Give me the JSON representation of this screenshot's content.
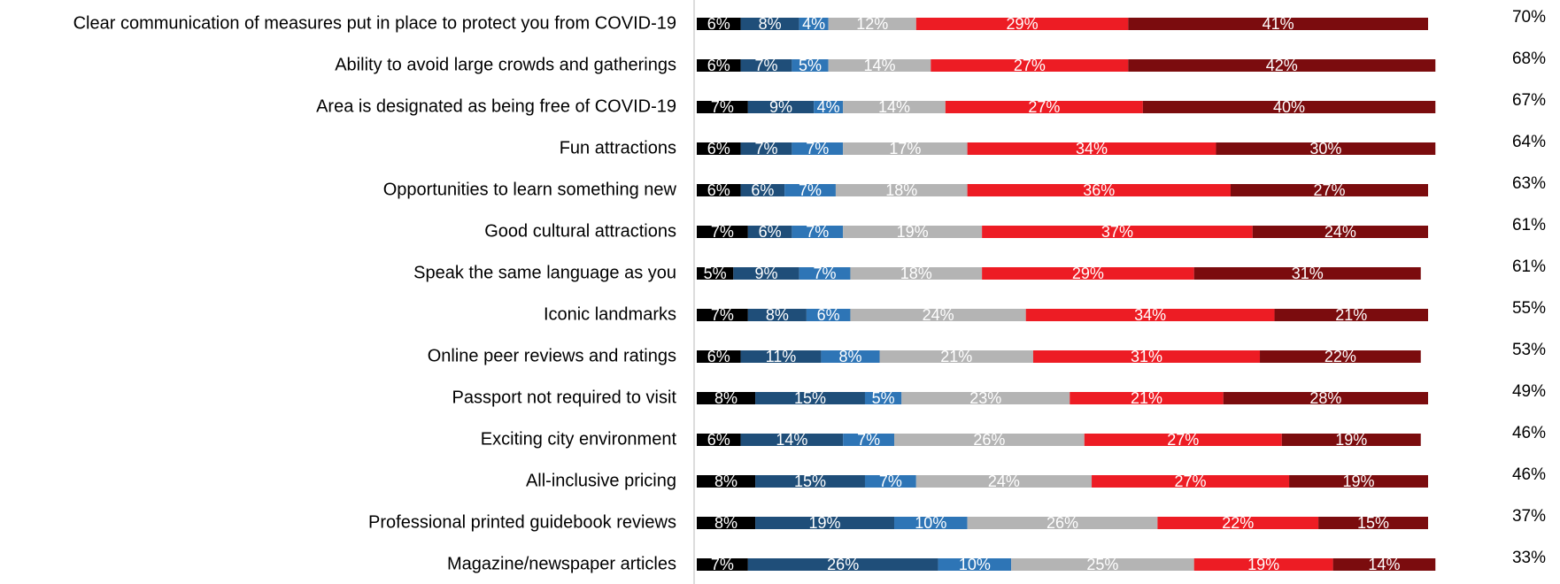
{
  "chart_data": {
    "type": "stacked_barh",
    "categories": [
      "Clear communication of measures put in place to protect you from COVID-19",
      "Ability to avoid large crowds and gatherings",
      "Area is designated as being free of COVID-19",
      "Fun attractions",
      "Opportunities to learn something new",
      "Good cultural attractions",
      "Speak the same language as you",
      "Iconic landmarks",
      "Online peer reviews and ratings",
      "Passport not required to visit",
      "Exciting city environment",
      "All-inclusive pricing",
      "Professional printed guidebook reviews",
      "Magazine/newspaper articles"
    ],
    "xlim": [
      0,
      100
    ],
    "series": [
      {
        "color": "#000000",
        "values": [
          6,
          6,
          7,
          6,
          6,
          7,
          5,
          7,
          6,
          8,
          6,
          8,
          8,
          7
        ],
        "value_labels": [
          "6%",
          "6%",
          "7%",
          "6%",
          "6%",
          "7%",
          "5%",
          "7%",
          "6%",
          "8%",
          "6%",
          "8%",
          "8%",
          "7%"
        ]
      },
      {
        "color": "#1f4e79",
        "values": [
          8,
          7,
          9,
          7,
          6,
          6,
          9,
          8,
          11,
          15,
          14,
          15,
          19,
          26
        ],
        "value_labels": [
          "8%",
          "7%",
          "9%",
          "7%",
          "6%",
          "6%",
          "9%",
          "8%",
          "11%",
          "15%",
          "14%",
          "15%",
          "19%",
          "26%"
        ]
      },
      {
        "color": "#2e75b6",
        "values": [
          4,
          5,
          4,
          7,
          7,
          7,
          7,
          6,
          8,
          5,
          7,
          7,
          10,
          10
        ],
        "value_labels": [
          "4%",
          "5%",
          "4%",
          "7%",
          "7%",
          "7%",
          "7%",
          "6%",
          "8%",
          "5%",
          "7%",
          "7%",
          "10%",
          "10%"
        ]
      },
      {
        "color": "#b4b4b4",
        "values": [
          12,
          14,
          14,
          17,
          18,
          19,
          18,
          24,
          21,
          23,
          26,
          24,
          26,
          25
        ],
        "value_labels": [
          "12%",
          "14%",
          "14%",
          "17%",
          "18%",
          "19%",
          "18%",
          "24%",
          "21%",
          "23%",
          "26%",
          "24%",
          "26%",
          "25%"
        ]
      },
      {
        "color": "#ed1c24",
        "values": [
          29,
          27,
          27,
          34,
          36,
          37,
          29,
          34,
          31,
          21,
          27,
          27,
          22,
          19
        ],
        "value_labels": [
          "29%",
          "27%",
          "27%",
          "34%",
          "36%",
          "37%",
          "29%",
          "34%",
          "31%",
          "21%",
          "27%",
          "27%",
          "22%",
          "19%"
        ]
      },
      {
        "color": "#7b0c0e",
        "values": [
          41,
          42,
          40,
          30,
          27,
          24,
          31,
          21,
          22,
          28,
          19,
          19,
          15,
          14
        ],
        "value_labels": [
          "41%",
          "42%",
          "40%",
          "30%",
          "27%",
          "24%",
          "31%",
          "21%",
          "22%",
          "28%",
          "19%",
          "19%",
          "15%",
          "14%"
        ]
      }
    ],
    "totals": {
      "values": [
        70,
        68,
        67,
        64,
        63,
        61,
        61,
        55,
        53,
        49,
        46,
        46,
        37,
        33
      ],
      "value_labels": [
        "70%",
        "68%",
        "67%",
        "64%",
        "63%",
        "61%",
        "61%",
        "55%",
        "53%",
        "49%",
        "46%",
        "46%",
        "37%",
        "33%"
      ]
    }
  }
}
